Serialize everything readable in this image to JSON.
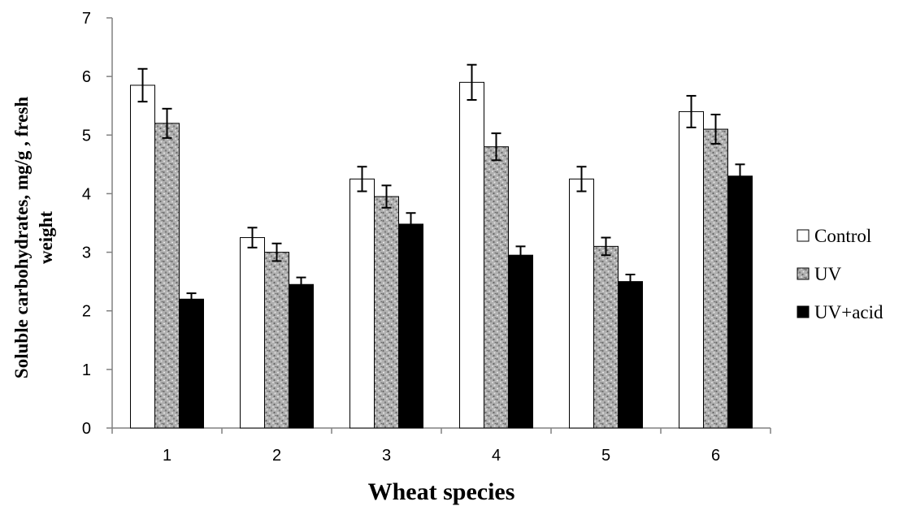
{
  "chart_data": {
    "type": "bar",
    "xlabel": "Wheat species",
    "ylabel": "Soluble carbohydrates, mg/g , fresh weight",
    "ylabel_lines": [
      "Soluble carbohydrates, mg/g , fresh",
      "weight"
    ],
    "ylim": [
      0,
      7
    ],
    "yticks": [
      0,
      1,
      2,
      3,
      4,
      5,
      6,
      7
    ],
    "categories": [
      "1",
      "2",
      "3",
      "4",
      "5",
      "6"
    ],
    "grid": false,
    "legend_position": "right",
    "series": [
      {
        "name": "Control",
        "fill": "white",
        "color": "#ffffff",
        "values": [
          5.85,
          3.25,
          4.25,
          5.9,
          4.25,
          5.4
        ],
        "errors": [
          0.28,
          0.17,
          0.21,
          0.3,
          0.21,
          0.27
        ]
      },
      {
        "name": "UV",
        "fill": "speckled",
        "color": "#a9a9a9",
        "values": [
          5.2,
          3.0,
          3.95,
          4.8,
          3.1,
          5.1
        ],
        "errors": [
          0.25,
          0.15,
          0.19,
          0.23,
          0.15,
          0.25
        ]
      },
      {
        "name": "UV+acid",
        "fill": "black",
        "color": "#000000",
        "values": [
          2.2,
          2.45,
          3.48,
          2.95,
          2.5,
          4.3
        ],
        "errors": [
          0.1,
          0.12,
          0.19,
          0.15,
          0.12,
          0.2
        ]
      }
    ]
  }
}
